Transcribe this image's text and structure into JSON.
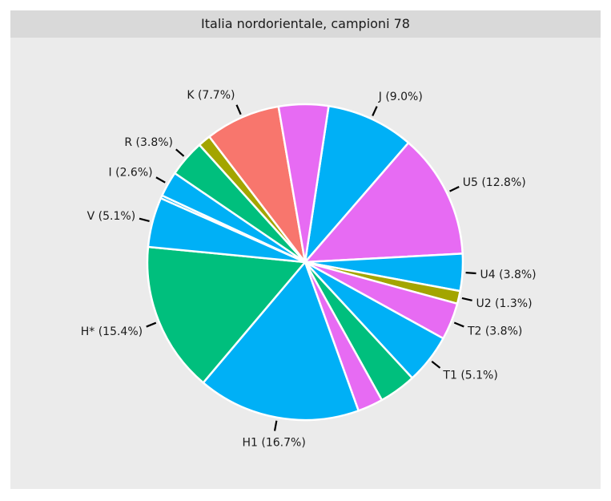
{
  "chart_data": {
    "type": "pie",
    "title": "Italia nordorientale, campioni 78",
    "slices": [
      {
        "label": "J (9.0%)",
        "value": 9.0,
        "color": "#00B0F6"
      },
      {
        "label": "U5 (12.8%)",
        "value": 12.8,
        "color": "#E76BF3"
      },
      {
        "label": "U4 (3.8%)",
        "value": 3.8,
        "color": "#00B0F6"
      },
      {
        "label": "U2 (1.3%)",
        "value": 1.3,
        "color": "#A3A500"
      },
      {
        "label": "T2 (3.8%)",
        "value": 3.8,
        "color": "#E76BF3"
      },
      {
        "label": "T1 (5.1%)",
        "value": 5.1,
        "color": "#00B0F6"
      },
      {
        "label": "",
        "value": 3.8,
        "color": "#00BF7D"
      },
      {
        "label": "",
        "value": 2.6,
        "color": "#E76BF3"
      },
      {
        "label": "H1 (16.7%)",
        "value": 16.7,
        "color": "#00B0F6"
      },
      {
        "label": "H* (15.4%)",
        "value": 15.4,
        "color": "#00BF7D"
      },
      {
        "label": "V (5.1%)",
        "value": 5.1,
        "color": "#00B0F6"
      },
      {
        "label": "",
        "value": 0.3,
        "color": "#00B0F6"
      },
      {
        "label": "I (2.6%)",
        "value": 2.6,
        "color": "#00B0F6"
      },
      {
        "label": "R (3.8%)",
        "value": 3.8,
        "color": "#00BF7D"
      },
      {
        "label": "",
        "value": 1.3,
        "color": "#A3A500"
      },
      {
        "label": "K (7.7%)",
        "value": 7.7,
        "color": "#F8766D"
      },
      {
        "label": "",
        "value": 5.1,
        "color": "#E76BF3"
      }
    ]
  }
}
